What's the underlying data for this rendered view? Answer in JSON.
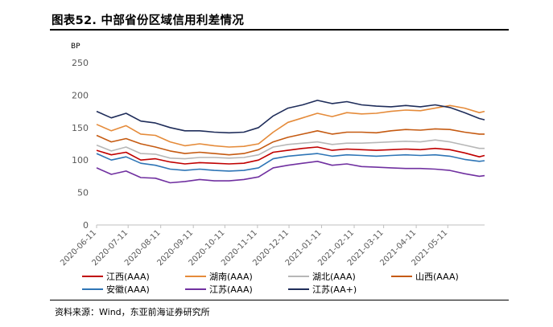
{
  "page": {
    "title": "图表52. 中部省份区域信用利差情况",
    "source": "资料来源：Wind，东亚前海证券研究所"
  },
  "chart_data": {
    "type": "line",
    "title": "",
    "ylabel": "BP",
    "xlabel": "",
    "ylim": [
      0,
      250
    ],
    "yticks": [
      0,
      50,
      100,
      150,
      200,
      250
    ],
    "xlim": [
      "2020-06-11",
      "2021-06-15"
    ],
    "xticks": [
      "2020-06-11",
      "2020-07-11",
      "2020-08-11",
      "2020-09-11",
      "2020-10-11",
      "2020-11-11",
      "2020-12-11",
      "2021-01-11",
      "2021-02-11",
      "2021-03-11",
      "2021-04-11",
      "2021-05-11"
    ],
    "grid": false,
    "legend": "bottom",
    "x": [
      "2020-06-11",
      "2020-06-25",
      "2020-07-09",
      "2020-07-23",
      "2020-08-06",
      "2020-08-20",
      "2020-09-03",
      "2020-09-17",
      "2020-10-01",
      "2020-10-15",
      "2020-10-29",
      "2020-11-12",
      "2020-11-26",
      "2020-12-10",
      "2020-12-24",
      "2021-01-07",
      "2021-01-21",
      "2021-02-04",
      "2021-02-18",
      "2021-03-04",
      "2021-03-18",
      "2021-04-01",
      "2021-04-15",
      "2021-04-29",
      "2021-05-13",
      "2021-05-27",
      "2021-06-10",
      "2021-06-15"
    ],
    "series": [
      {
        "name": "江西(AAA)",
        "color": "#c00000",
        "values": [
          115,
          108,
          112,
          100,
          102,
          97,
          94,
          96,
          95,
          94,
          95,
          100,
          112,
          115,
          118,
          120,
          115,
          117,
          116,
          115,
          116,
          117,
          116,
          118,
          116,
          111,
          105,
          107
        ]
      },
      {
        "name": "湖南(AAA)",
        "color": "#e58b3a",
        "values": [
          155,
          145,
          153,
          140,
          138,
          128,
          122,
          125,
          122,
          120,
          121,
          125,
          143,
          158,
          165,
          172,
          167,
          173,
          171,
          172,
          175,
          177,
          176,
          180,
          184,
          180,
          173,
          175
        ]
      },
      {
        "name": "湖北(AAA)",
        "color": "#b7b7b7",
        "values": [
          123,
          114,
          120,
          110,
          109,
          103,
          102,
          104,
          104,
          103,
          104,
          108,
          120,
          124,
          126,
          128,
          124,
          126,
          126,
          127,
          128,
          129,
          128,
          131,
          128,
          123,
          118,
          118
        ]
      },
      {
        "name": "山西(AAA)",
        "color": "#c55a11",
        "values": [
          138,
          128,
          133,
          125,
          120,
          114,
          110,
          112,
          110,
          108,
          110,
          116,
          128,
          135,
          140,
          145,
          140,
          143,
          143,
          142,
          145,
          147,
          146,
          148,
          147,
          143,
          140,
          140
        ]
      },
      {
        "name": "安徽(AAA)",
        "color": "#2e75b6",
        "values": [
          110,
          100,
          105,
          95,
          92,
          86,
          84,
          86,
          84,
          83,
          84,
          88,
          102,
          106,
          108,
          110,
          106,
          108,
          107,
          106,
          107,
          108,
          107,
          108,
          106,
          101,
          98,
          99
        ]
      },
      {
        "name": "江苏(AAA)",
        "color": "#7030a0",
        "values": [
          88,
          78,
          83,
          73,
          72,
          65,
          67,
          70,
          68,
          68,
          70,
          74,
          88,
          92,
          95,
          98,
          92,
          94,
          90,
          89,
          88,
          87,
          87,
          86,
          84,
          79,
          75,
          76
        ]
      },
      {
        "name": "江苏(AA+)",
        "color": "#1f2d5a",
        "values": [
          175,
          165,
          172,
          160,
          157,
          150,
          145,
          145,
          143,
          142,
          143,
          150,
          168,
          180,
          185,
          192,
          187,
          190,
          185,
          183,
          182,
          184,
          182,
          185,
          181,
          173,
          164,
          162
        ]
      }
    ]
  }
}
